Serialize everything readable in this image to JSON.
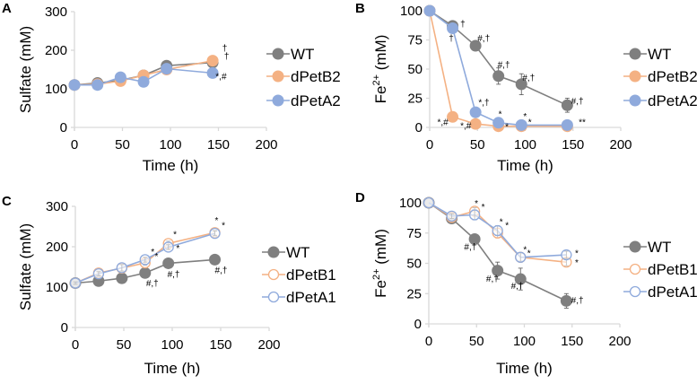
{
  "colors": {
    "WT": "#7f7f7f",
    "orange": "#f4b183",
    "blue": "#8faadc",
    "axis": "#d9d9d9"
  },
  "chart_data": [
    {
      "panel": "A",
      "type": "line",
      "xlabel": "Time (h)",
      "ylabel": "Sulfate (mM)",
      "ylabel_sup": "",
      "xlim": [
        0,
        200
      ],
      "ylim": [
        0,
        300
      ],
      "xticks": [
        0,
        50,
        100,
        150,
        200
      ],
      "yticks": [
        0,
        100,
        200,
        300
      ],
      "grid": false,
      "legend": "right",
      "x": [
        0,
        24,
        48,
        72,
        96,
        144
      ],
      "series": [
        {
          "name": "WT",
          "color": "#7f7f7f",
          "marker": "filled",
          "values": [
            110,
            115,
            122,
            135,
            160,
            168
          ],
          "errors": [
            3,
            3,
            3,
            3,
            3,
            5
          ]
        },
        {
          "name": "dPetB2",
          "color": "#f4b183",
          "marker": "filled",
          "values": [
            110,
            112,
            120,
            135,
            150,
            173
          ],
          "errors": [
            3,
            3,
            3,
            3,
            3,
            5
          ]
        },
        {
          "name": "dPetA2",
          "color": "#8faadc",
          "marker": "filled",
          "values": [
            110,
            110,
            130,
            118,
            152,
            141
          ],
          "errors": [
            3,
            3,
            3,
            3,
            3,
            3
          ]
        }
      ],
      "annotations": [
        {
          "text": "†",
          "x": 154,
          "y": 198
        },
        {
          "text": "†",
          "x": 156,
          "y": 177
        },
        {
          "text": "*,#",
          "x": 147,
          "y": 125
        }
      ]
    },
    {
      "panel": "B",
      "type": "line",
      "xlabel": "Time (h)",
      "ylabel": "Fe",
      "ylabel_sup": "2+",
      "ylabel_unit": " (mM)",
      "xlim": [
        0,
        200
      ],
      "ylim": [
        0,
        100
      ],
      "xticks": [
        0,
        50,
        100,
        150,
        200
      ],
      "yticks": [
        0,
        25,
        50,
        75,
        100
      ],
      "grid": false,
      "legend": "right",
      "x": [
        0,
        24,
        48,
        72,
        96,
        144
      ],
      "series": [
        {
          "name": "WT",
          "color": "#7f7f7f",
          "marker": "filled",
          "values": [
            100,
            87,
            70,
            44,
            37,
            19
          ],
          "errors": [
            1,
            2,
            2,
            7,
            9,
            6
          ]
        },
        {
          "name": "dPetB2",
          "color": "#f4b183",
          "marker": "filled",
          "values": [
            100,
            9,
            3,
            1,
            1,
            1
          ],
          "errors": [
            1,
            1,
            1,
            1,
            1,
            1
          ]
        },
        {
          "name": "dPetA2",
          "color": "#8faadc",
          "marker": "filled",
          "values": [
            100,
            85,
            13,
            4,
            2,
            2
          ],
          "errors": [
            1,
            2,
            1,
            1,
            1,
            1
          ]
        }
      ],
      "annotations": [
        {
          "text": "†",
          "x": 32,
          "y": 86
        },
        {
          "text": "†",
          "x": 20,
          "y": 74
        },
        {
          "text": "#,†",
          "x": 50,
          "y": 74
        },
        {
          "text": "#,†",
          "x": 71,
          "y": 51
        },
        {
          "text": "#,†",
          "x": 97,
          "y": 40
        },
        {
          "text": "#,†",
          "x": 148,
          "y": 20
        },
        {
          "text": "*,†",
          "x": 51,
          "y": 19
        },
        {
          "text": "*,#",
          "x": 8,
          "y": 2
        },
        {
          "text": "*,#",
          "x": 32,
          "y": -1
        },
        {
          "text": "*",
          "x": 72,
          "y": 9
        },
        {
          "text": "*",
          "x": 98,
          "y": 7
        },
        {
          "text": "*",
          "x": 103,
          "y": 2
        },
        {
          "text": "*",
          "x": 79,
          "y": -2
        },
        {
          "text": "**",
          "x": 156,
          "y": 2
        }
      ]
    },
    {
      "panel": "C",
      "type": "line",
      "xlabel": "Time (h)",
      "ylabel": "Sulfate (mM)",
      "ylabel_sup": "",
      "xlim": [
        0,
        200
      ],
      "ylim": [
        0,
        300
      ],
      "xticks": [
        0,
        50,
        100,
        150,
        200
      ],
      "yticks": [
        0,
        100,
        200,
        300
      ],
      "grid": false,
      "legend": "right",
      "x": [
        0,
        24,
        48,
        72,
        96,
        144
      ],
      "series": [
        {
          "name": "WT",
          "color": "#7f7f7f",
          "marker": "filled",
          "values": [
            110,
            115,
            122,
            135,
            159,
            168
          ],
          "errors": [
            3,
            3,
            3,
            3,
            3,
            3
          ]
        },
        {
          "name": "dPetB1",
          "color": "#f4b183",
          "marker": "open",
          "values": [
            110,
            135,
            147,
            160,
            208,
            235
          ],
          "errors": [
            3,
            5,
            8,
            6,
            6,
            6
          ]
        },
        {
          "name": "dPetA1",
          "color": "#8faadc",
          "marker": "open",
          "values": [
            110,
            133,
            148,
            168,
            199,
            233
          ],
          "errors": [
            3,
            5,
            8,
            6,
            6,
            6
          ]
        }
      ],
      "annotations": [
        {
          "text": "*",
          "x": 144,
          "y": 258
        },
        {
          "text": "*",
          "x": 151,
          "y": 246
        },
        {
          "text": "*",
          "x": 78,
          "y": 180
        },
        {
          "text": "*",
          "x": 82,
          "y": 169
        },
        {
          "text": "*",
          "x": 101,
          "y": 223
        },
        {
          "text": "*",
          "x": 104,
          "y": 189
        },
        {
          "text": "#,†",
          "x": 73,
          "y": 102
        },
        {
          "text": "#,†",
          "x": 95,
          "y": 124
        },
        {
          "text": "#,†",
          "x": 144,
          "y": 135
        }
      ]
    },
    {
      "panel": "D",
      "type": "line",
      "xlabel": "Time (h)",
      "ylabel": "Fe",
      "ylabel_sup": "2+",
      "ylabel_unit": " (mM)",
      "xlim": [
        0,
        200
      ],
      "ylim": [
        0,
        100
      ],
      "xticks": [
        0,
        50,
        100,
        150,
        200
      ],
      "yticks": [
        0,
        25,
        50,
        75,
        100
      ],
      "grid": false,
      "legend": "right",
      "x": [
        0,
        24,
        48,
        72,
        96,
        144
      ],
      "series": [
        {
          "name": "WT",
          "color": "#7f7f7f",
          "marker": "filled",
          "values": [
            100,
            87,
            70,
            44,
            37,
            19
          ],
          "errors": [
            1,
            2,
            2,
            7,
            9,
            6
          ]
        },
        {
          "name": "dPetB1",
          "color": "#f4b183",
          "marker": "open",
          "values": [
            100,
            88,
            93,
            75,
            55,
            51
          ],
          "errors": [
            1,
            2,
            3,
            4,
            3,
            3
          ]
        },
        {
          "name": "dPetA1",
          "color": "#8faadc",
          "marker": "open",
          "values": [
            100,
            89,
            90,
            77,
            55,
            57
          ],
          "errors": [
            1,
            2,
            4,
            4,
            4,
            3
          ]
        }
      ],
      "annotations": [
        {
          "text": "*",
          "x": 48,
          "y": 97
        },
        {
          "text": "*",
          "x": 55,
          "y": 94
        },
        {
          "text": "*",
          "x": 74,
          "y": 82
        },
        {
          "text": "*",
          "x": 80,
          "y": 79
        },
        {
          "text": "*",
          "x": 99,
          "y": 59
        },
        {
          "text": "*",
          "x": 103,
          "y": 56
        },
        {
          "text": "*",
          "x": 153,
          "y": 56
        },
        {
          "text": "*",
          "x": 153,
          "y": 48
        },
        {
          "text": "#,†",
          "x": 37,
          "y": 61
        },
        {
          "text": "#,†",
          "x": 60,
          "y": 35
        },
        {
          "text": "#,†",
          "x": 86,
          "y": 29
        },
        {
          "text": "#,†",
          "x": 149,
          "y": 17
        }
      ]
    }
  ]
}
